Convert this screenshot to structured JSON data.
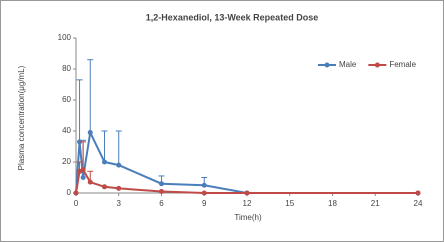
{
  "chart_data": {
    "type": "line",
    "title": "1,2-Hexanediol, 13-Week Repeated Dose",
    "x_label": "Time(h)",
    "y_label": "Plasma concentration(μg/mL)",
    "x": [
      0,
      0.25,
      0.5,
      1,
      2,
      3,
      6,
      9,
      12,
      24
    ],
    "series": [
      {
        "name": "Male",
        "color": "#4a7ebb",
        "values": [
          0,
          33,
          10,
          39,
          20,
          18,
          6,
          5,
          0,
          0
        ],
        "errors": [
          null,
          40,
          24,
          47,
          20,
          22,
          5,
          5,
          null,
          null
        ]
      },
      {
        "name": "Female",
        "color": "#be4b48",
        "values": [
          0,
          14,
          15,
          7,
          4,
          3,
          1,
          0,
          0,
          0
        ],
        "errors": [
          null,
          6,
          18,
          7,
          null,
          null,
          null,
          null,
          null,
          null
        ]
      }
    ],
    "xlim": [
      0,
      24
    ],
    "xticks": [
      0,
      3,
      6,
      9,
      12,
      15,
      18,
      21,
      24
    ],
    "ylim": [
      0,
      100
    ],
    "yticks": [
      0,
      20,
      40,
      60,
      80,
      100
    ],
    "legend": "top-right"
  }
}
